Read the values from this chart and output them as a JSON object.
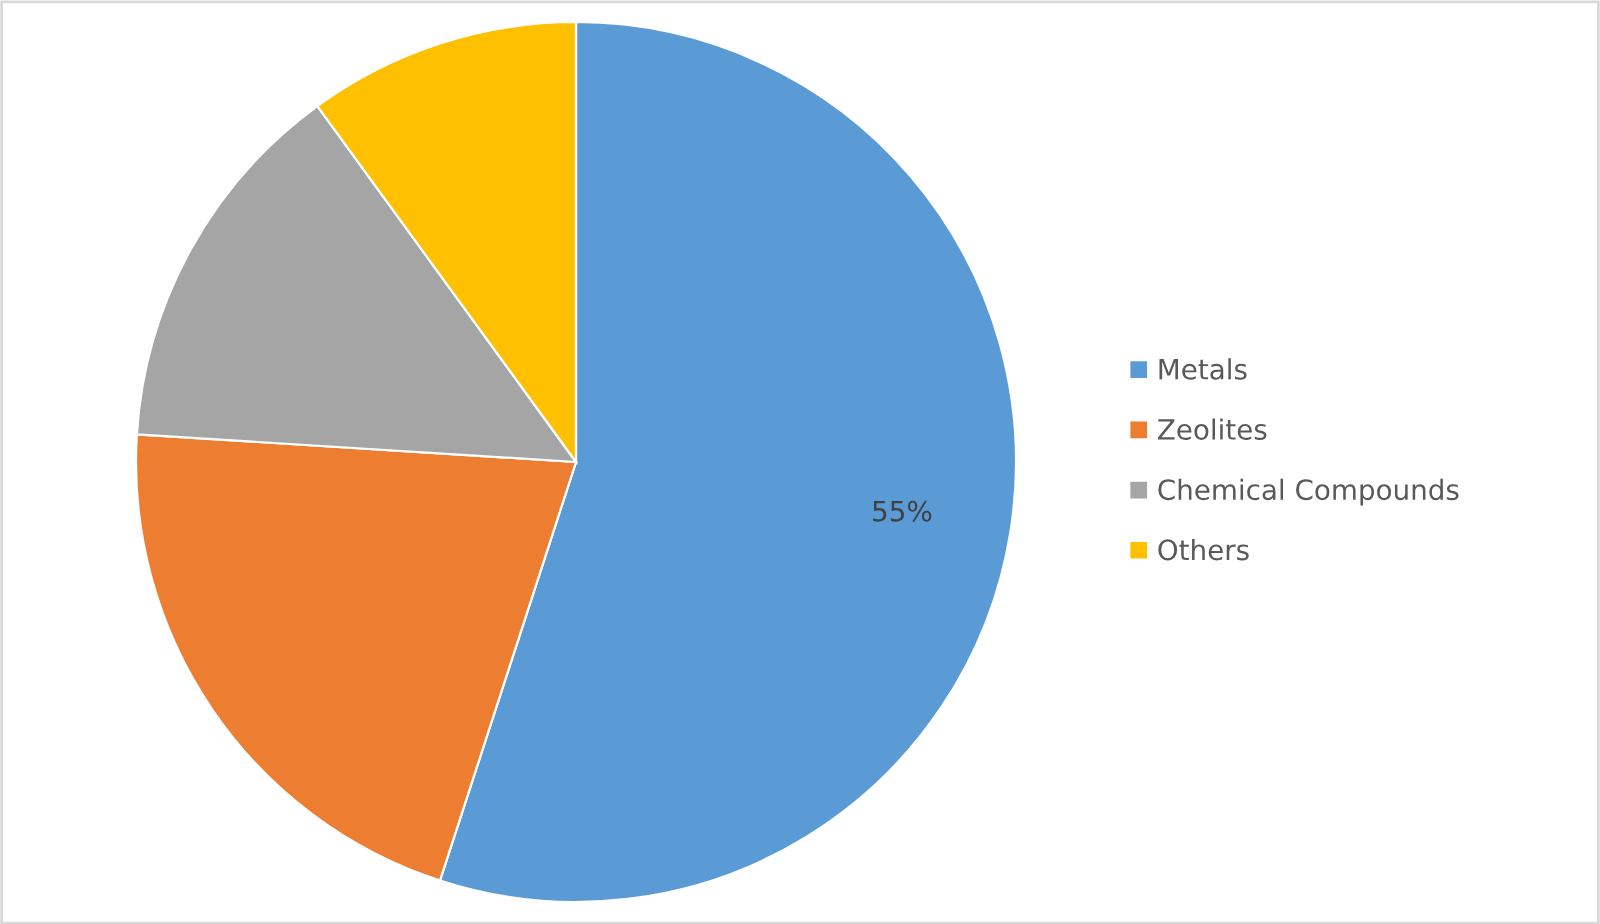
{
  "chart_data": {
    "type": "pie",
    "categories": [
      "Metals",
      "Zeolites",
      "Chemical Compounds",
      "Others"
    ],
    "values": [
      55,
      21,
      14,
      10
    ],
    "colors": [
      "#5b9bd5",
      "#ed7d31",
      "#a5a5a5",
      "#ffc000"
    ],
    "value_labels": [
      "55%",
      null,
      null,
      null
    ],
    "legend": "right"
  }
}
